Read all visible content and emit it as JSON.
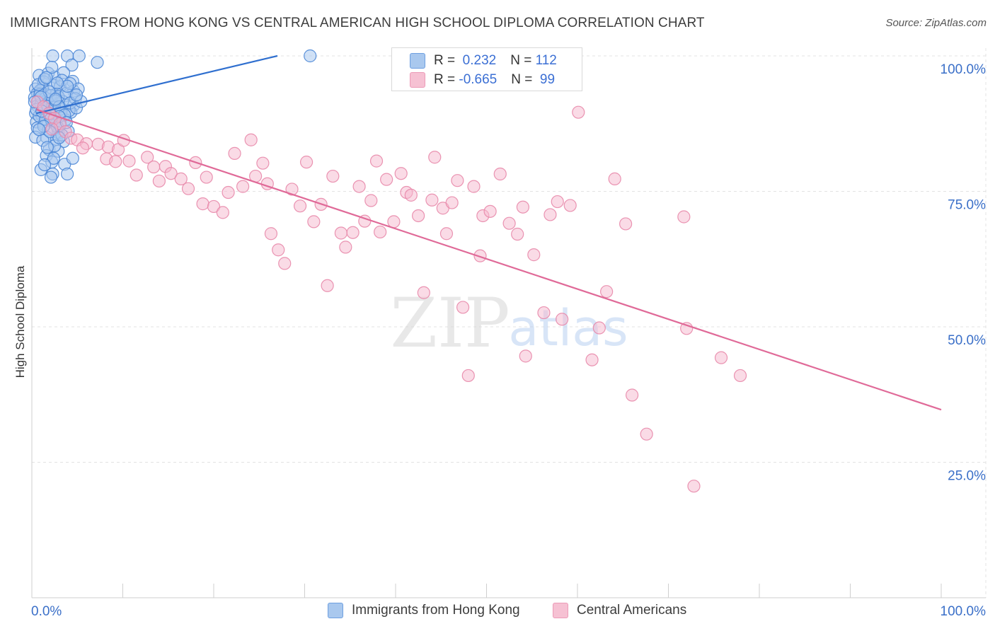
{
  "title": "IMMIGRANTS FROM HONG KONG VS CENTRAL AMERICAN HIGH SCHOOL DIPLOMA CORRELATION CHART",
  "source": "Source: ZipAtlas.com",
  "watermark": {
    "zip": "ZIP",
    "atlas": "atlas"
  },
  "colors": {
    "blue_fill": "#a9c8ee",
    "blue_stroke": "#4a86d6",
    "blue_line": "#2f6fcf",
    "pink_fill": "#f6b8cd",
    "pink_stroke": "#e888aa",
    "pink_line": "#e06a98",
    "axis_text": "#3a6fc8",
    "grid": "#e3e3e3"
  },
  "legend_box": {
    "rows": [
      {
        "r_label": "R = ",
        "r_value": " 0.232",
        "n_label": "N = ",
        "n_value": "112"
      },
      {
        "r_label": "R = ",
        "r_value": "-0.665",
        "n_label": "N = ",
        "n_value": " 99"
      }
    ]
  },
  "legend_bottom": {
    "items": [
      "Immigrants from Hong Kong",
      "Central Americans"
    ]
  },
  "chart_data": {
    "type": "scatter",
    "title": "IMMIGRANTS FROM HONG KONG VS CENTRAL AMERICAN HIGH SCHOOL DIPLOMA CORRELATION CHART",
    "xlabel": "",
    "ylabel": "High School Diploma",
    "xlim": [
      0,
      100
    ],
    "ylim": [
      0,
      100
    ],
    "x_tick_labels": [
      "0.0%",
      "100.0%"
    ],
    "y_ticks": [
      25,
      50,
      75,
      100
    ],
    "y_tick_labels": [
      "25.0%",
      "50.0%",
      "75.0%",
      "100.0%"
    ],
    "grid": true,
    "series": [
      {
        "name": "Immigrants from Hong Kong",
        "R": 0.232,
        "N": 112,
        "trend": {
          "x": [
            0.5,
            27
          ],
          "y": [
            89.4,
            100
          ]
        },
        "points": [
          [
            2.3,
            100
          ],
          [
            3.9,
            100
          ],
          [
            5.2,
            100
          ],
          [
            4.4,
            98.3
          ],
          [
            7.2,
            98.8
          ],
          [
            30.6,
            100
          ],
          [
            0.8,
            96.4
          ],
          [
            1.8,
            96.8
          ],
          [
            2.5,
            96.1
          ],
          [
            3.5,
            96.9
          ],
          [
            2.2,
            97.9
          ],
          [
            1.3,
            95.2
          ],
          [
            4.5,
            95.3
          ],
          [
            0.4,
            93.9
          ],
          [
            1.2,
            94.1
          ],
          [
            2.4,
            94.6
          ],
          [
            3.1,
            94.3
          ],
          [
            4.6,
            93.5
          ],
          [
            5.1,
            93.9
          ],
          [
            0.6,
            93.1
          ],
          [
            1.6,
            92.8
          ],
          [
            2.7,
            93.0
          ],
          [
            3.6,
            92.6
          ],
          [
            0.3,
            92.3
          ],
          [
            0.7,
            91.8
          ],
          [
            1.3,
            91.4
          ],
          [
            2.0,
            91.9
          ],
          [
            2.8,
            91.2
          ],
          [
            3.4,
            91.6
          ],
          [
            4.6,
            90.9
          ],
          [
            0.6,
            90.8
          ],
          [
            1.4,
            90.3
          ],
          [
            2.3,
            90.0
          ],
          [
            3.3,
            90.2
          ],
          [
            4.3,
            89.6
          ],
          [
            0.4,
            89.4
          ],
          [
            1.1,
            89.0
          ],
          [
            1.9,
            88.7
          ],
          [
            2.6,
            88.5
          ],
          [
            3.7,
            88.2
          ],
          [
            0.5,
            87.8
          ],
          [
            1.3,
            87.4
          ],
          [
            2.4,
            87.6
          ],
          [
            3.1,
            87.2
          ],
          [
            0.6,
            86.7
          ],
          [
            1.8,
            86.3
          ],
          [
            2.9,
            85.8
          ],
          [
            4.0,
            86.1
          ],
          [
            0.4,
            85.0
          ],
          [
            1.6,
            85.0
          ],
          [
            2.7,
            84.6
          ],
          [
            3.5,
            84.2
          ],
          [
            1.9,
            82.7
          ],
          [
            2.9,
            82.4
          ],
          [
            1.6,
            81.6
          ],
          [
            2.2,
            80.4
          ],
          [
            3.6,
            80.0
          ],
          [
            4.5,
            81.1
          ],
          [
            1.0,
            79.0
          ],
          [
            2.3,
            78.2
          ],
          [
            3.9,
            78.2
          ],
          [
            2.1,
            77.6
          ],
          [
            0.9,
            93.6
          ],
          [
            1.5,
            92.2
          ],
          [
            2.1,
            92.7
          ],
          [
            2.9,
            92.5
          ],
          [
            3.8,
            93.1
          ],
          [
            4.8,
            92.1
          ],
          [
            1.0,
            91.1
          ],
          [
            1.7,
            90.7
          ],
          [
            2.5,
            90.5
          ],
          [
            3.2,
            89.5
          ],
          [
            4.1,
            89.9
          ],
          [
            0.8,
            88.9
          ],
          [
            1.5,
            88.3
          ],
          [
            2.2,
            87.9
          ],
          [
            2.8,
            86.9
          ],
          [
            3.3,
            85.4
          ],
          [
            1.2,
            84.4
          ],
          [
            2.5,
            83.4
          ],
          [
            0.9,
            92.9
          ],
          [
            1.9,
            93.4
          ],
          [
            2.6,
            91.7
          ],
          [
            3.0,
            90.6
          ],
          [
            4.2,
            91.3
          ],
          [
            0.5,
            90.1
          ],
          [
            1.1,
            89.8
          ],
          [
            2.0,
            89.3
          ],
          [
            3.6,
            89.1
          ],
          [
            4.9,
            90.4
          ],
          [
            5.4,
            91.6
          ],
          [
            0.7,
            94.7
          ],
          [
            1.4,
            95.7
          ],
          [
            3.3,
            95.5
          ],
          [
            4.2,
            94.9
          ],
          [
            2.0,
            86.0
          ],
          [
            3.0,
            84.9
          ],
          [
            1.7,
            83.1
          ],
          [
            2.4,
            81.1
          ],
          [
            1.4,
            79.9
          ],
          [
            3.0,
            88.8
          ],
          [
            2.1,
            88.4
          ],
          [
            1.3,
            87.0
          ],
          [
            0.8,
            86.4
          ],
          [
            3.8,
            87.7
          ],
          [
            2.6,
            92.0
          ],
          [
            1.0,
            92.4
          ],
          [
            0.3,
            91.5
          ],
          [
            3.9,
            94.4
          ],
          [
            1.6,
            96.0
          ],
          [
            2.8,
            95.0
          ],
          [
            4.9,
            92.8
          ]
        ]
      },
      {
        "name": "Central Americans",
        "R": -0.665,
        "N": 99,
        "trend": {
          "x": [
            0.5,
            100
          ],
          "y": [
            90.1,
            34.7
          ]
        },
        "points": [
          [
            0.6,
            91.5
          ],
          [
            1.3,
            90.6
          ],
          [
            1.9,
            89.4
          ],
          [
            2.5,
            88.5
          ],
          [
            3.1,
            87.5
          ],
          [
            2.2,
            86.5
          ],
          [
            3.7,
            86.0
          ],
          [
            4.3,
            84.8
          ],
          [
            5.0,
            84.5
          ],
          [
            6.0,
            83.8
          ],
          [
            5.6,
            83.0
          ],
          [
            7.3,
            83.7
          ],
          [
            8.4,
            83.2
          ],
          [
            9.5,
            82.7
          ],
          [
            10.1,
            84.4
          ],
          [
            8.2,
            81.0
          ],
          [
            9.2,
            80.5
          ],
          [
            10.7,
            80.6
          ],
          [
            11.5,
            78.0
          ],
          [
            12.7,
            81.3
          ],
          [
            13.4,
            79.5
          ],
          [
            14.0,
            76.9
          ],
          [
            14.7,
            79.6
          ],
          [
            15.3,
            78.3
          ],
          [
            16.4,
            77.3
          ],
          [
            17.2,
            75.5
          ],
          [
            18.0,
            80.3
          ],
          [
            18.8,
            72.7
          ],
          [
            19.2,
            77.6
          ],
          [
            20.0,
            72.2
          ],
          [
            21.0,
            71.1
          ],
          [
            21.6,
            74.8
          ],
          [
            22.3,
            82.0
          ],
          [
            23.2,
            75.9
          ],
          [
            24.1,
            84.5
          ],
          [
            24.6,
            77.8
          ],
          [
            25.4,
            80.2
          ],
          [
            25.9,
            76.4
          ],
          [
            26.3,
            67.2
          ],
          [
            27.1,
            64.2
          ],
          [
            27.8,
            61.7
          ],
          [
            28.6,
            75.4
          ],
          [
            29.5,
            72.3
          ],
          [
            30.2,
            80.4
          ],
          [
            31.0,
            69.4
          ],
          [
            31.8,
            72.6
          ],
          [
            32.5,
            57.6
          ],
          [
            33.1,
            77.8
          ],
          [
            34.0,
            67.3
          ],
          [
            34.5,
            64.7
          ],
          [
            35.3,
            67.4
          ],
          [
            36.0,
            75.9
          ],
          [
            36.6,
            69.5
          ],
          [
            37.3,
            73.3
          ],
          [
            37.9,
            80.6
          ],
          [
            38.3,
            67.5
          ],
          [
            39.0,
            77.2
          ],
          [
            39.8,
            69.4
          ],
          [
            40.6,
            78.3
          ],
          [
            41.2,
            74.8
          ],
          [
            41.7,
            74.3
          ],
          [
            42.5,
            70.5
          ],
          [
            43.1,
            56.3
          ],
          [
            44.0,
            73.4
          ],
          [
            44.3,
            81.3
          ],
          [
            45.2,
            71.9
          ],
          [
            45.6,
            67.2
          ],
          [
            46.2,
            72.9
          ],
          [
            46.8,
            77.0
          ],
          [
            47.4,
            53.6
          ],
          [
            48.0,
            41.0
          ],
          [
            48.6,
            75.9
          ],
          [
            49.3,
            63.1
          ],
          [
            49.6,
            70.5
          ],
          [
            50.4,
            71.3
          ],
          [
            51.5,
            78.2
          ],
          [
            52.5,
            69.1
          ],
          [
            53.4,
            67.1
          ],
          [
            54.0,
            72.1
          ],
          [
            54.3,
            44.6
          ],
          [
            55.2,
            63.3
          ],
          [
            56.3,
            52.6
          ],
          [
            57.0,
            70.7
          ],
          [
            57.8,
            73.1
          ],
          [
            58.3,
            51.4
          ],
          [
            59.2,
            72.4
          ],
          [
            60.1,
            89.6
          ],
          [
            61.6,
            43.9
          ],
          [
            62.4,
            49.8
          ],
          [
            63.2,
            56.5
          ],
          [
            64.1,
            77.3
          ],
          [
            65.3,
            69.0
          ],
          [
            66.0,
            37.4
          ],
          [
            67.6,
            30.2
          ],
          [
            71.7,
            70.3
          ],
          [
            72.8,
            20.6
          ],
          [
            72.0,
            49.7
          ],
          [
            75.8,
            44.3
          ],
          [
            77.9,
            41.0
          ]
        ]
      }
    ]
  }
}
